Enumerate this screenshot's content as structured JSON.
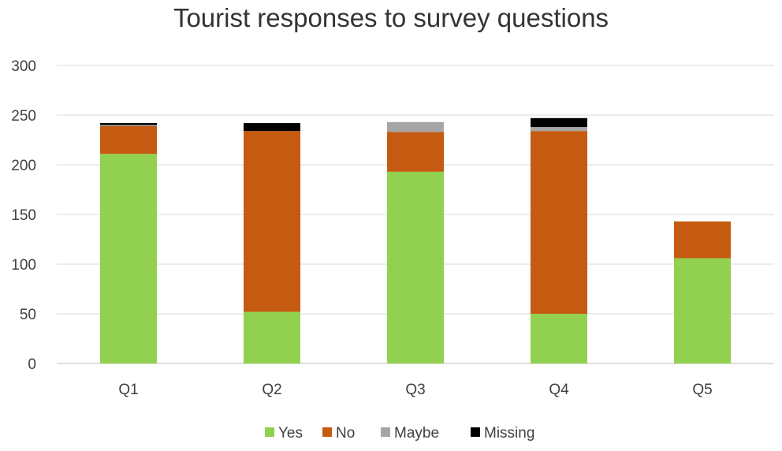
{
  "chart_data": {
    "type": "bar",
    "stacked": true,
    "title": "Tourist responses to survey questions",
    "xlabel": "",
    "ylabel": "",
    "categories": [
      "Q1",
      "Q2",
      "Q3",
      "Q4",
      "Q5"
    ],
    "ylim": [
      0,
      300
    ],
    "yticks": [
      0,
      50,
      100,
      150,
      200,
      250,
      300
    ],
    "grid": true,
    "legend_position": "bottom",
    "series": [
      {
        "name": "Yes",
        "color": "#92d050",
        "values": [
          211,
          52,
          193,
          50,
          106
        ]
      },
      {
        "name": "No",
        "color": "#c55a11",
        "values": [
          28,
          182,
          40,
          184,
          37
        ]
      },
      {
        "name": "Maybe",
        "color": "#a6a6a6",
        "values": [
          1,
          0,
          10,
          4,
          0
        ]
      },
      {
        "name": "Missing",
        "color": "#000000",
        "values": [
          2,
          8,
          0,
          9,
          0
        ]
      }
    ]
  }
}
